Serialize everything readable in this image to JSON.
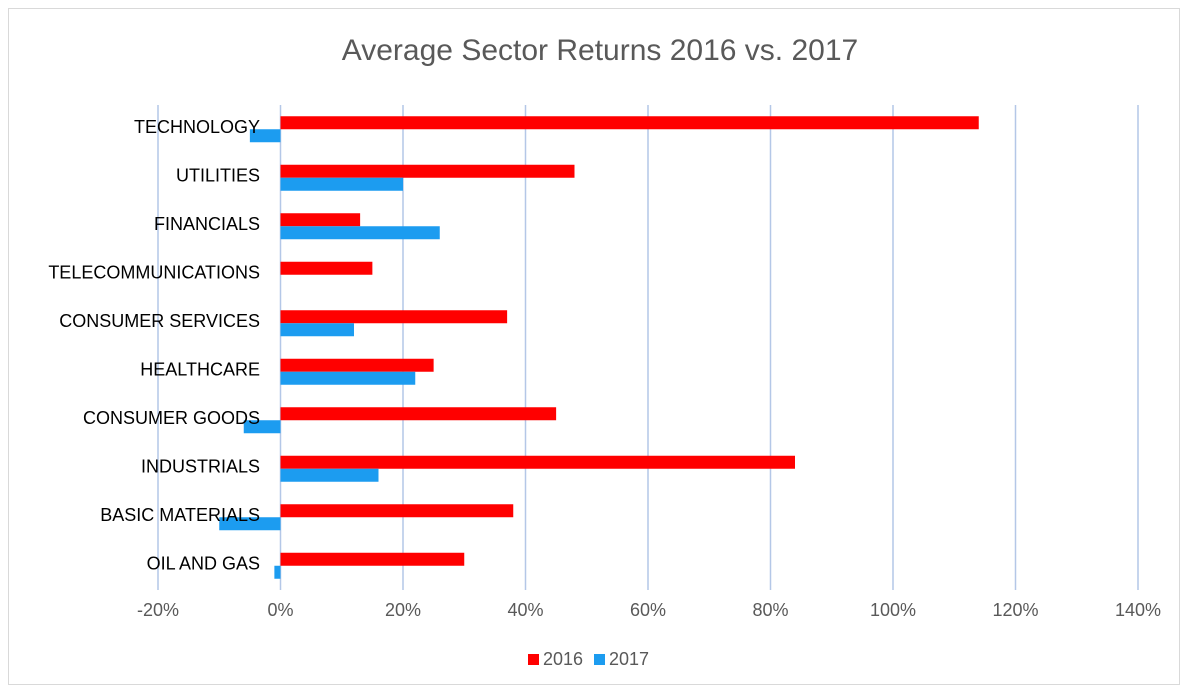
{
  "chart_data": {
    "type": "bar",
    "orientation": "horizontal",
    "title": "Average Sector Returns 2016 vs. 2017",
    "categories": [
      "TECHNOLOGY",
      "UTILITIES",
      "FINANCIALS",
      "TELECOMMUNICATIONS",
      "CONSUMER SERVICES",
      "HEALTHCARE",
      "CONSUMER GOODS",
      "INDUSTRIALS",
      "BASIC MATERIALS",
      "OIL AND GAS"
    ],
    "series": [
      {
        "name": "2016",
        "color": "#ff0000",
        "values": [
          114,
          48,
          13,
          15,
          37,
          25,
          45,
          84,
          38,
          30
        ]
      },
      {
        "name": "2017",
        "color": "#1c9cf0",
        "values": [
          -5,
          20,
          26,
          0,
          12,
          22,
          -6,
          16,
          -10,
          -1
        ]
      }
    ],
    "xlim": [
      -20,
      140
    ],
    "xticks": [
      {
        "value": -20,
        "label": "-20%"
      },
      {
        "value": 0,
        "label": "0%"
      },
      {
        "value": 20,
        "label": "20%"
      },
      {
        "value": 40,
        "label": "40%"
      },
      {
        "value": 60,
        "label": "60%"
      },
      {
        "value": 80,
        "label": "80%"
      },
      {
        "value": 100,
        "label": "100%"
      },
      {
        "value": 120,
        "label": "120%"
      },
      {
        "value": 140,
        "label": "140%"
      }
    ],
    "grid": true,
    "legend": "bottom"
  }
}
